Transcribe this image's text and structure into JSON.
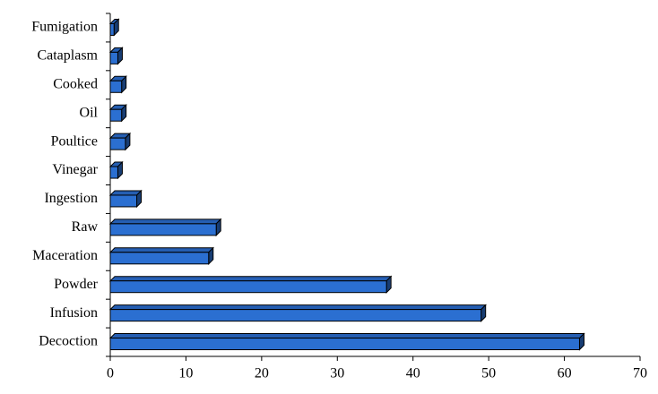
{
  "chart_data": {
    "type": "bar",
    "orientation": "horizontal",
    "categories": [
      "Fumigation",
      "Cataplasm",
      "Cooked",
      "Oil",
      "Poultice",
      "Vinegar",
      "Ingestion",
      "Raw",
      "Maceration",
      "Powder",
      "Infusion",
      "Decoction"
    ],
    "values": [
      0.5,
      1,
      1.5,
      1.5,
      2,
      1,
      3.5,
      14,
      13,
      36.5,
      49,
      62
    ],
    "color": "#2b6fd1",
    "xlim": [
      0,
      70
    ],
    "xticks": [
      0,
      10,
      20,
      30,
      40,
      50,
      60,
      70
    ]
  }
}
